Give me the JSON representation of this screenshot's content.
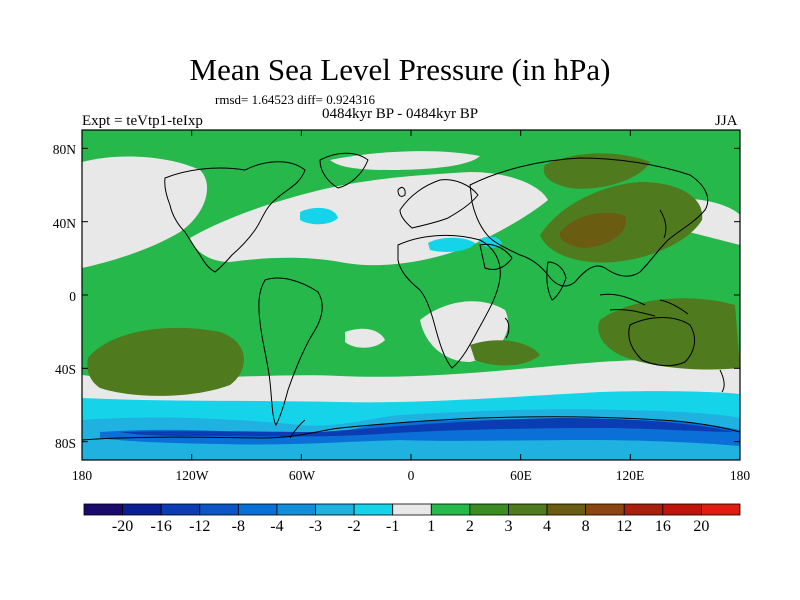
{
  "title": "Mean Sea Level Pressure (in hPa)",
  "stats": "rmsd= 1.64523 diff= 0.924316",
  "period": "0484kyr BP - 0484kyr BP",
  "experiment": "Expt = teVtp1-teIxp",
  "season": "JJA",
  "lat_ticks": [
    "80N",
    "40N",
    "0",
    "40S",
    "80S"
  ],
  "lon_ticks": [
    "180",
    "120W",
    "60W",
    "0",
    "60E",
    "120E",
    "180"
  ],
  "colorbar": {
    "labels": [
      "-20",
      "-16",
      "-12",
      "-8",
      "-4",
      "-3",
      "-2",
      "-1",
      "1",
      "2",
      "3",
      "4",
      "8",
      "12",
      "16",
      "20"
    ],
    "colors": [
      "#1a0a6b",
      "#0b1f94",
      "#0b3cb4",
      "#0b55c6",
      "#0a6fd6",
      "#128fd8",
      "#1fb1e0",
      "#15d4ea",
      "#e8e8e8",
      "#26b84a",
      "#3c8c24",
      "#4f7a1e",
      "#6a5c10",
      "#8b4512",
      "#a8200c",
      "#c0140a",
      "#e01e10"
    ]
  },
  "legend_colors": {
    "background": "#26b84a",
    "neutral": "#e8e8e8",
    "positive_strong": "#4f7a1e",
    "positive_stronger": "#6a5c10",
    "negative_light": "#15d4ea",
    "negative_mid": "#1fb1e0",
    "negative_deep": "#0a6fd6",
    "negative_deeper": "#0b3cb4"
  }
}
